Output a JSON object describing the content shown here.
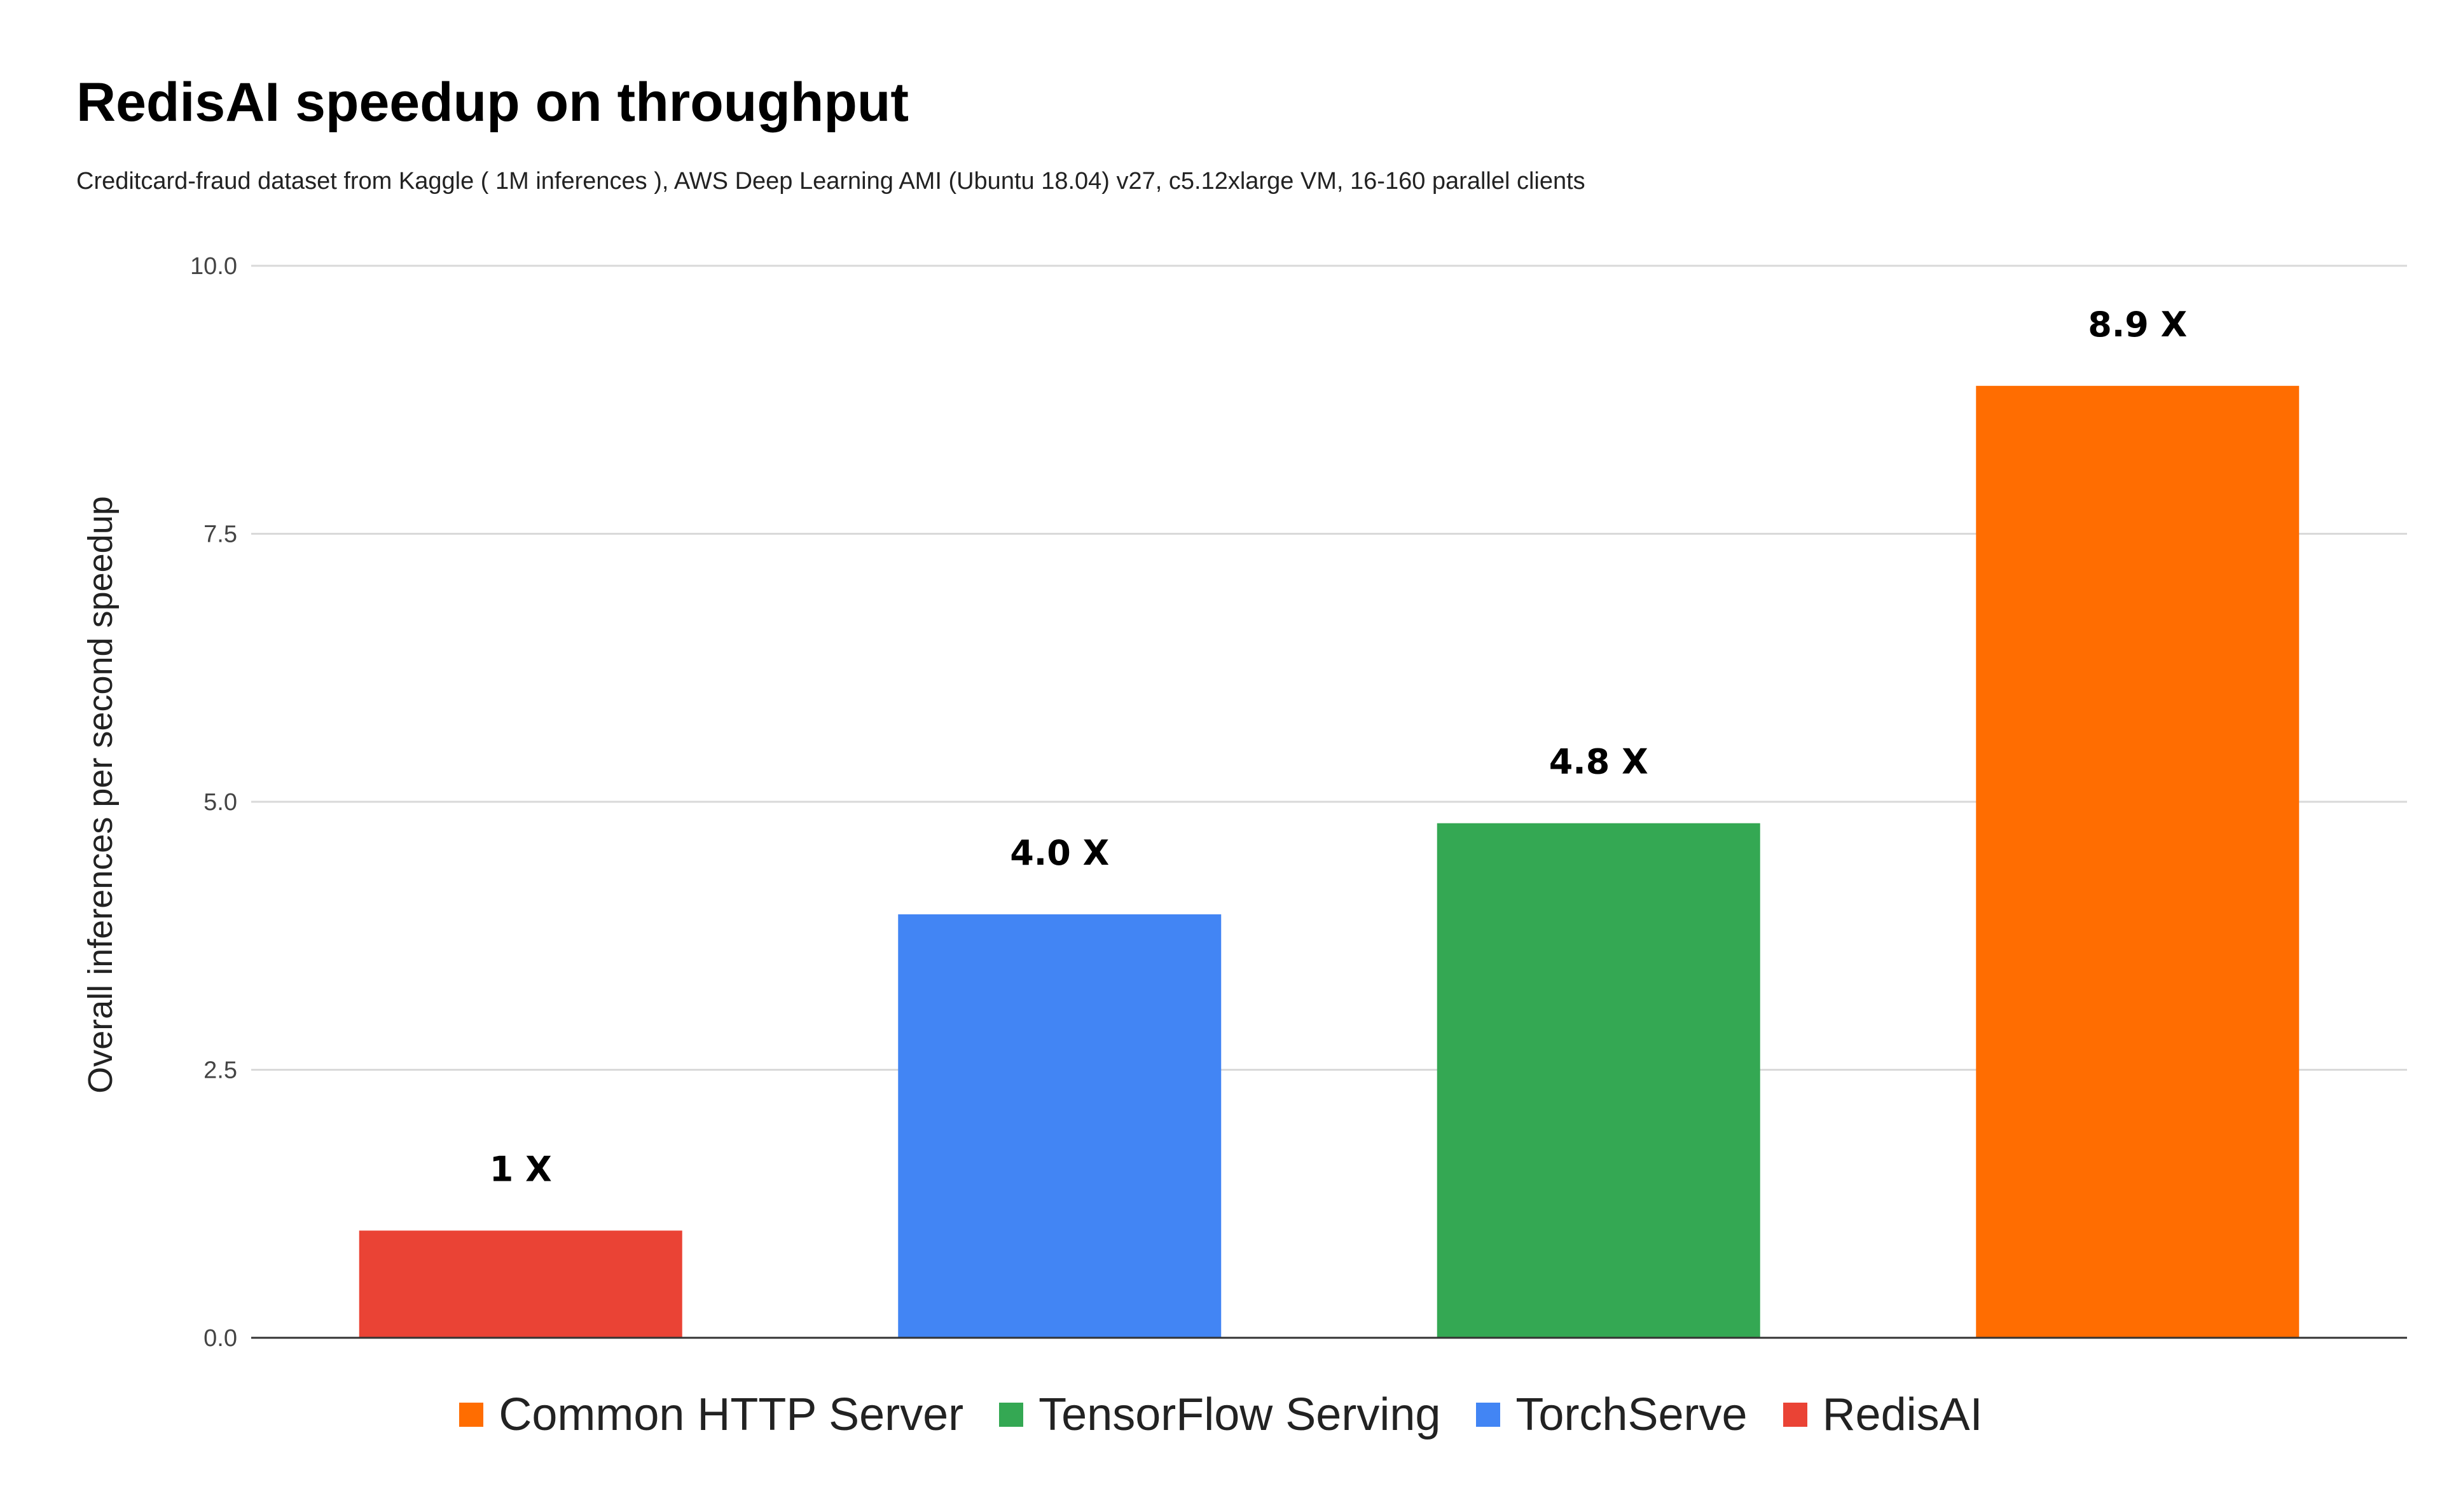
{
  "chart_data": {
    "type": "bar",
    "title": "RedisAI speedup on throughput",
    "subtitle": "Creditcard-fraud dataset from Kaggle ( 1M inferences ), AWS Deep Learning AMI (Ubuntu 18.04) v27, c5.12xlarge VM, 16-160 parallel clients",
    "xlabel": "",
    "ylabel": "Overall inferences per second speedup",
    "ylim": [
      0,
      10
    ],
    "yticks": [
      "0.0",
      "2.5",
      "5.0",
      "7.5",
      "10.0"
    ],
    "grid": true,
    "legend_position": "bottom",
    "series": [
      {
        "name": "RedisAI",
        "value": 1.0,
        "label": "1 X",
        "color": "#ea4335"
      },
      {
        "name": "TorchServe",
        "value": 3.95,
        "label": "4.0 X",
        "color": "#4285f4"
      },
      {
        "name": "TensorFlow Serving",
        "value": 4.8,
        "label": "4.8 X",
        "color": "#34a853"
      },
      {
        "name": "Common HTTP Server",
        "value": 8.88,
        "label": "8.9 X",
        "color": "#ff6d01"
      }
    ],
    "legend_order": [
      "Common HTTP Server",
      "TensorFlow Serving",
      "TorchServe",
      "RedisAI"
    ]
  }
}
